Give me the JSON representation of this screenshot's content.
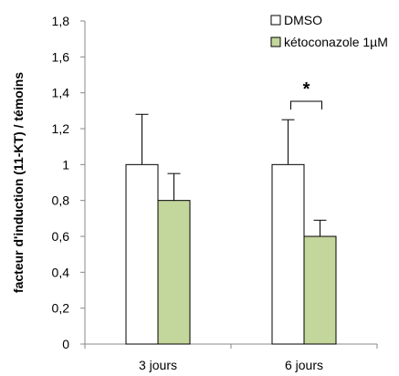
{
  "chart_data": {
    "type": "bar",
    "title": "",
    "xlabel": "",
    "ylabel": "facteur d'induction (11-KT) / témoins",
    "ylim": [
      0,
      1.8
    ],
    "yticks": [
      "0",
      "0,2",
      "0,4",
      "0,6",
      "0,8",
      "1",
      "1,2",
      "1,4",
      "1,6",
      "1,8"
    ],
    "categories": [
      "3 jours",
      "6 jours"
    ],
    "series": [
      {
        "name": "DMSO",
        "values": [
          1.0,
          1.0
        ],
        "error": [
          0.28,
          0.25
        ],
        "color": "#ffffff"
      },
      {
        "name": "kétoconazole 1µM",
        "values": [
          0.8,
          0.6
        ],
        "error": [
          0.15,
          0.09
        ],
        "color": "#c3d69b"
      }
    ],
    "annotations": [
      {
        "text": "*",
        "category": "6 jours"
      }
    ],
    "grid": false,
    "legend_position": "top-right"
  }
}
